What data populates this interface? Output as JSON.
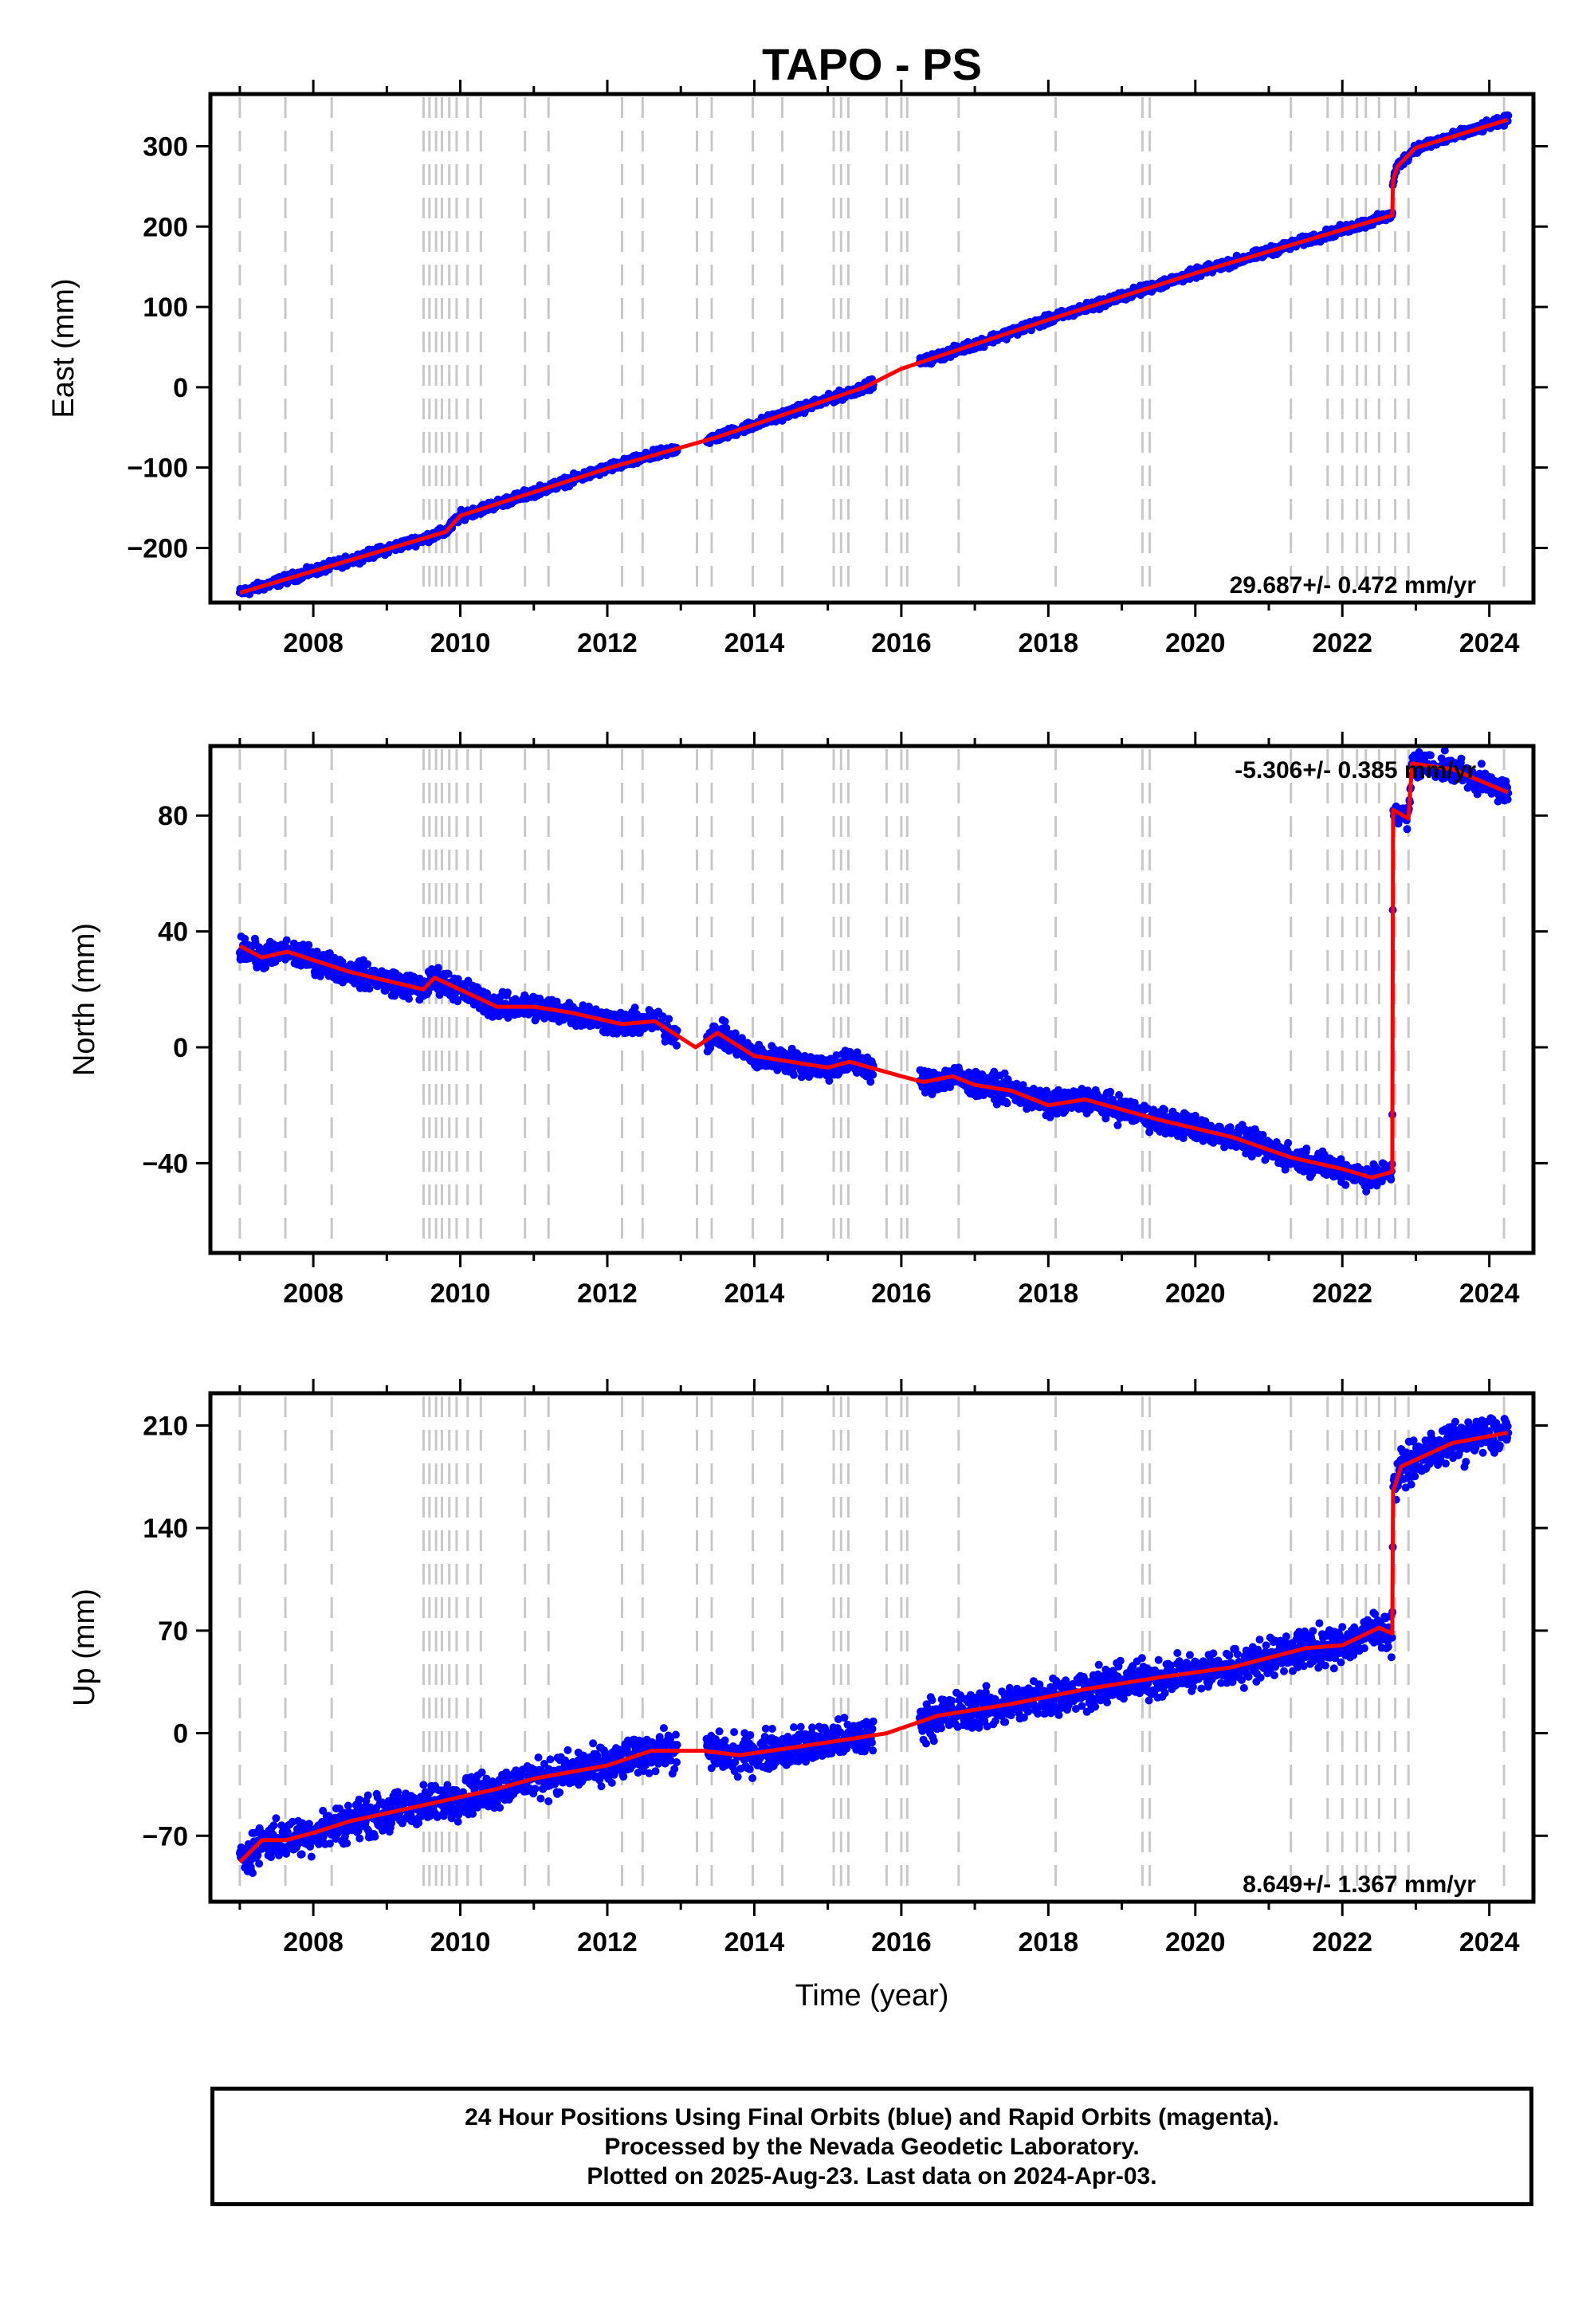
{
  "title": "TAPO - PS",
  "x_axis_label": "Time (year)",
  "caption": {
    "line1": "24 Hour Positions Using Final Orbits (blue) and Rapid Orbits (magenta).",
    "line2": "Processed by the Nevada Geodetic Laboratory.",
    "line3": "Plotted on 2025-Aug-23. Last data on 2024-Apr-03."
  },
  "colors": {
    "points": "#0000ff",
    "model": "#ff0000",
    "event_lines": "#c8c8c8",
    "frame": "#000000"
  },
  "chart_data": [
    {
      "type": "scatter",
      "component": "East",
      "ylabel": "East (mm)",
      "rate_label": "29.687+/- 0.472 mm/yr",
      "xlim": [
        2006.6,
        2024.6
      ],
      "ylim": [
        -268,
        365
      ],
      "xticks": [
        2008,
        2010,
        2012,
        2014,
        2016,
        2018,
        2020,
        2022,
        2024
      ],
      "yticks": [
        -200,
        -100,
        0,
        100,
        200,
        300
      ],
      "ytick_labels": [
        "−200",
        "−100",
        "0",
        "100",
        "200",
        "300"
      ],
      "grid": false,
      "event_lines": [
        2007.0,
        2007.62,
        2008.25,
        2009.5,
        2009.58,
        2009.67,
        2009.75,
        2009.85,
        2009.95,
        2010.1,
        2010.28,
        2010.88,
        2011.2,
        2012.2,
        2012.48,
        2013.22,
        2013.42,
        2013.98,
        2014.38,
        2015.08,
        2015.18,
        2015.28,
        2015.8,
        2016.0,
        2016.08,
        2016.78,
        2018.1,
        2019.28,
        2019.38,
        2021.3,
        2021.8,
        2022.0,
        2022.2,
        2022.32,
        2022.5,
        2022.72,
        2022.9,
        2024.2
      ],
      "model_breakpoints": [
        [
          2007.0,
          -256
        ],
        [
          2009.8,
          -180
        ],
        [
          2010.0,
          -160
        ],
        [
          2012.0,
          -101
        ],
        [
          2013.5,
          -62
        ],
        [
          2015.5,
          0
        ],
        [
          2016.0,
          23
        ],
        [
          2018.0,
          84
        ],
        [
          2020.0,
          142
        ],
        [
          2022.0,
          196
        ],
        [
          2022.68,
          214
        ],
        [
          2022.69,
          258
        ],
        [
          2022.75,
          275
        ],
        [
          2023.0,
          298
        ],
        [
          2024.25,
          333
        ]
      ],
      "data_segments": [
        [
          2007.0,
          2012.95
        ],
        [
          2013.35,
          2015.62
        ],
        [
          2016.25,
          2024.26
        ]
      ],
      "scatter_spread": 4
    },
    {
      "type": "scatter",
      "component": "North",
      "ylabel": "North (mm)",
      "rate_label": "-5.306+/- 0.385 mm/yr",
      "xlim": [
        2006.6,
        2024.6
      ],
      "ylim": [
        -71,
        104
      ],
      "xticks": [
        2008,
        2010,
        2012,
        2014,
        2016,
        2018,
        2020,
        2022,
        2024
      ],
      "yticks": [
        -40,
        0,
        40,
        80
      ],
      "ytick_labels": [
        "−40",
        "0",
        "40",
        "80"
      ],
      "grid": false,
      "event_lines": [
        2007.0,
        2007.62,
        2008.25,
        2009.5,
        2009.58,
        2009.67,
        2009.75,
        2009.85,
        2009.95,
        2010.1,
        2010.28,
        2010.88,
        2011.2,
        2012.2,
        2012.48,
        2013.22,
        2013.42,
        2013.98,
        2014.38,
        2015.08,
        2015.18,
        2015.28,
        2015.8,
        2016.0,
        2016.08,
        2016.78,
        2018.1,
        2019.28,
        2019.38,
        2021.3,
        2021.8,
        2022.0,
        2022.2,
        2022.32,
        2022.5,
        2022.72,
        2022.9,
        2024.2
      ],
      "model_breakpoints": [
        [
          2007.0,
          35
        ],
        [
          2007.3,
          31
        ],
        [
          2007.65,
          33
        ],
        [
          2008.5,
          26
        ],
        [
          2009.5,
          20
        ],
        [
          2009.65,
          24
        ],
        [
          2010.5,
          14
        ],
        [
          2011.0,
          14
        ],
        [
          2011.5,
          12
        ],
        [
          2012.2,
          8
        ],
        [
          2012.65,
          9
        ],
        [
          2013.2,
          0
        ],
        [
          2013.5,
          5
        ],
        [
          2014.0,
          -3
        ],
        [
          2015.0,
          -7
        ],
        [
          2015.3,
          -5
        ],
        [
          2016.0,
          -10
        ],
        [
          2016.3,
          -12
        ],
        [
          2016.7,
          -10
        ],
        [
          2017.0,
          -13
        ],
        [
          2017.5,
          -15
        ],
        [
          2018.0,
          -20
        ],
        [
          2018.5,
          -18
        ],
        [
          2019.5,
          -25
        ],
        [
          2020.0,
          -28
        ],
        [
          2020.5,
          -31
        ],
        [
          2021.3,
          -38
        ],
        [
          2022.0,
          -42
        ],
        [
          2022.4,
          -45
        ],
        [
          2022.68,
          -43
        ],
        [
          2022.69,
          82
        ],
        [
          2022.9,
          79
        ],
        [
          2022.95,
          98
        ],
        [
          2023.5,
          96
        ],
        [
          2024.25,
          88
        ]
      ],
      "data_segments": [
        [
          2007.0,
          2012.95
        ],
        [
          2013.35,
          2015.62
        ],
        [
          2016.25,
          2024.26
        ]
      ],
      "scatter_spread": 3
    },
    {
      "type": "scatter",
      "component": "Up",
      "ylabel": "Up (mm)",
      "rate_label": "8.649+/- 1.367 mm/yr",
      "xlim": [
        2006.6,
        2024.6
      ],
      "ylim": [
        -115,
        232
      ],
      "xticks": [
        2008,
        2010,
        2012,
        2014,
        2016,
        2018,
        2020,
        2022,
        2024
      ],
      "yticks": [
        -70,
        0,
        70,
        140,
        210
      ],
      "ytick_labels": [
        "−70",
        "0",
        "70",
        "140",
        "210"
      ],
      "grid": false,
      "event_lines": [
        2007.0,
        2007.62,
        2008.25,
        2009.5,
        2009.58,
        2009.67,
        2009.75,
        2009.85,
        2009.95,
        2010.1,
        2010.28,
        2010.88,
        2011.2,
        2012.2,
        2012.48,
        2013.22,
        2013.42,
        2013.98,
        2014.38,
        2015.08,
        2015.18,
        2015.28,
        2015.8,
        2016.0,
        2016.08,
        2016.78,
        2018.1,
        2019.28,
        2019.38,
        2021.3,
        2021.8,
        2022.0,
        2022.2,
        2022.32,
        2022.5,
        2022.72,
        2022.9,
        2024.2
      ],
      "model_breakpoints": [
        [
          2007.0,
          -88
        ],
        [
          2007.3,
          -73
        ],
        [
          2007.62,
          -73
        ],
        [
          2008.0,
          -68
        ],
        [
          2008.5,
          -60
        ],
        [
          2009.6,
          -48
        ],
        [
          2010.5,
          -38
        ],
        [
          2011.0,
          -31
        ],
        [
          2012.0,
          -22
        ],
        [
          2012.6,
          -12
        ],
        [
          2013.3,
          -12
        ],
        [
          2013.8,
          -15
        ],
        [
          2014.5,
          -10
        ],
        [
          2015.3,
          -4
        ],
        [
          2015.8,
          0
        ],
        [
          2016.5,
          12
        ],
        [
          2017.5,
          20
        ],
        [
          2018.5,
          30
        ],
        [
          2019.5,
          38
        ],
        [
          2020.5,
          45
        ],
        [
          2021.5,
          58
        ],
        [
          2022.0,
          60
        ],
        [
          2022.5,
          72
        ],
        [
          2022.68,
          68
        ],
        [
          2022.69,
          165
        ],
        [
          2022.8,
          182
        ],
        [
          2023.5,
          198
        ],
        [
          2024.25,
          205
        ]
      ],
      "data_segments": [
        [
          2007.0,
          2012.95
        ],
        [
          2013.35,
          2015.62
        ],
        [
          2016.25,
          2024.26
        ]
      ],
      "scatter_spread": 9
    }
  ]
}
